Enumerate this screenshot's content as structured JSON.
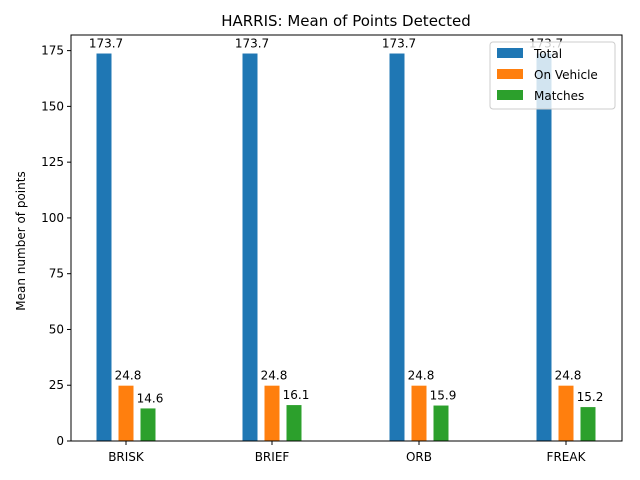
{
  "chart_data": {
    "type": "bar",
    "title": "HARRIS: Mean of Points Detected",
    "xlabel": "",
    "ylabel": "Mean number of points",
    "categories": [
      "BRISK",
      "BRIEF",
      "ORB",
      "FREAK"
    ],
    "series": [
      {
        "name": "Total",
        "color": "#1f77b4",
        "values": [
          173.7,
          173.7,
          173.7,
          173.7
        ]
      },
      {
        "name": "On Vehicle",
        "color": "#ff7f0e",
        "values": [
          24.8,
          24.8,
          24.8,
          24.8
        ]
      },
      {
        "name": "Matches",
        "color": "#2ca02c",
        "values": [
          14.6,
          16.1,
          15.9,
          15.2
        ]
      }
    ],
    "ylim": [
      0,
      182
    ],
    "yticks": [
      0,
      25,
      50,
      75,
      100,
      125,
      150,
      175
    ],
    "grid": false,
    "legend": "top-right"
  }
}
